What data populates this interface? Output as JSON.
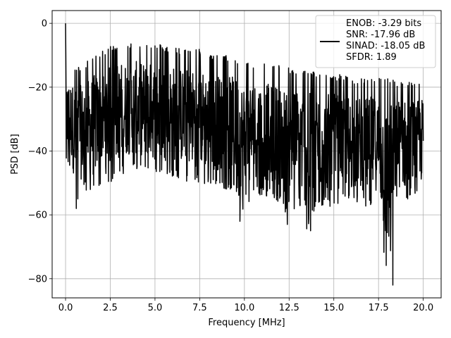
{
  "chart_data": {
    "type": "line",
    "title": "",
    "xlabel": "Frequency [MHz]",
    "ylabel": "PSD [dB]",
    "xlim": [
      -0.75,
      21
    ],
    "ylim": [
      -86,
      4
    ],
    "xticks": [
      0,
      2.5,
      5,
      7.5,
      10,
      12.5,
      15,
      17.5,
      20
    ],
    "xtick_labels": [
      "0.0",
      "2.5",
      "5.0",
      "7.5",
      "10.0",
      "12.5",
      "15.0",
      "17.5",
      "20.0"
    ],
    "yticks": [
      0,
      -20,
      -40,
      -60,
      -80
    ],
    "ytick_labels": [
      "0",
      "−20",
      "−40",
      "−60",
      "−80"
    ],
    "grid": true,
    "legend_position": "top-right",
    "series": [
      {
        "name": "ENOB: -3.29 bits\nSNR: -17.96 dB\nSINAD: -18.05 dB\nSFDR: 1.89",
        "color": "#000000",
        "envelope": {
          "x": [
            0.0,
            0.05,
            0.3,
            0.6,
            1.0,
            1.5,
            2.0,
            2.5,
            3.0,
            3.5,
            4.0,
            4.5,
            5.0,
            5.5,
            6.0,
            6.5,
            7.0,
            7.5,
            8.0,
            8.5,
            9.0,
            9.5,
            10.0,
            10.5,
            11.0,
            11.5,
            12.0,
            12.5,
            13.0,
            13.5,
            14.0,
            14.5,
            15.0,
            15.5,
            16.0,
            16.5,
            17.0,
            17.5,
            18.0,
            18.5,
            19.0,
            19.5,
            20.0
          ],
          "upper": [
            0,
            -14,
            -14,
            -15,
            -14,
            -11,
            -10,
            -8,
            -7,
            -7,
            -7,
            -7,
            -7,
            -8,
            -8,
            -9,
            -9,
            -9,
            -10,
            -11,
            -11,
            -12,
            -12,
            -13,
            -13,
            -14,
            -14,
            -15,
            -15,
            -16,
            -16,
            -17,
            -17,
            -17,
            -18,
            -18,
            -18,
            -18,
            -18,
            -19,
            -19,
            -19,
            -19
          ],
          "lower": [
            -50,
            -44,
            -46,
            -58,
            -52,
            -54,
            -50,
            -50,
            -48,
            -46,
            -46,
            -47,
            -48,
            -48,
            -48,
            -49,
            -50,
            -50,
            -51,
            -51,
            -52,
            -52,
            -62,
            -53,
            -54,
            -55,
            -56,
            -63,
            -56,
            -65,
            -58,
            -57,
            -58,
            -56,
            -57,
            -57,
            -58,
            -57,
            -82,
            -56,
            -57,
            -56,
            -54
          ]
        },
        "notable_dips": [
          {
            "x": 0.6,
            "y": -58
          },
          {
            "x": 9.75,
            "y": -62
          },
          {
            "x": 12.4,
            "y": -63
          },
          {
            "x": 13.7,
            "y": -65
          },
          {
            "x": 18.3,
            "y": -82
          }
        ]
      }
    ]
  },
  "legend": {
    "lines": [
      "ENOB: -3.29 bits",
      "SNR: -17.96 dB",
      "SINAD: -18.05 dB",
      "SFDR: 1.89"
    ]
  }
}
